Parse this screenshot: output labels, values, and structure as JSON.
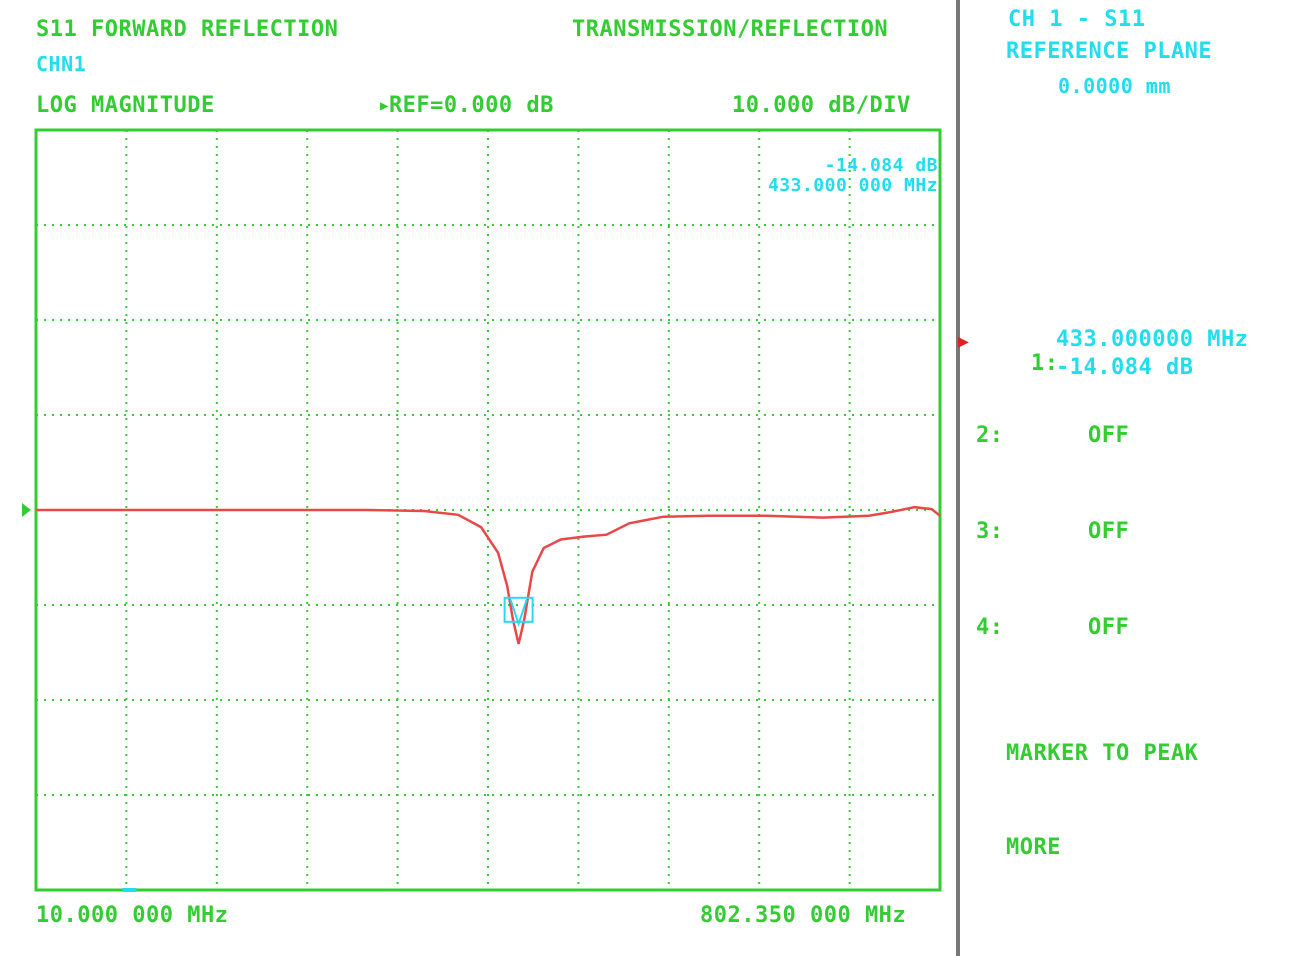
{
  "header": {
    "measurement": "S11 FORWARD REFLECTION",
    "mode": "TRANSMISSION/REFLECTION",
    "channel": "CHN1",
    "format": "LOG MAGNITUDE",
    "reference": "REF=0.000 dB",
    "scale": "10.000 dB/DIV"
  },
  "marker_readout": {
    "value": "-14.084 dB",
    "frequency": "433.000 000 MHz"
  },
  "footer": {
    "start": "10.000 000 MHz",
    "stop": "802.350 000 MHz"
  },
  "sidebar": {
    "channel_param": "CH 1 - S11",
    "ref_plane_label": "REFERENCE PLANE",
    "ref_plane_value": "0.0000 mm",
    "markers": [
      {
        "label": "1:",
        "value": "433.000000 MHz",
        "value2": "-14.084 dB",
        "active": true
      },
      {
        "label": "2:",
        "value": "OFF",
        "value2": "",
        "active": false
      },
      {
        "label": "3:",
        "value": "OFF",
        "value2": "",
        "active": false
      },
      {
        "label": "4:",
        "value": "OFF",
        "value2": "",
        "active": false
      }
    ],
    "softkeys": [
      "MARKER TO PEAK",
      "MORE"
    ]
  },
  "colors": {
    "grid": "#33cc33",
    "trace": "#e84848",
    "annotation": "#22ddee",
    "marker_arrow": "#dd2222",
    "divider": "#777777"
  },
  "chart_data": {
    "type": "line",
    "xlabel": "",
    "ylabel": "",
    "x_range_mhz": [
      10,
      802.35
    ],
    "y_divisions_db": 10,
    "ylim": [
      -40,
      40
    ],
    "reference_db": 0,
    "grid": true,
    "series": [
      {
        "x": [
          10,
          100,
          200,
          300,
          350,
          380,
          400,
          415,
          423,
          428,
          433,
          438,
          445,
          455,
          470,
          490,
          510,
          530,
          560,
          600,
          650,
          700,
          740,
          760,
          780,
          795,
          802.35
        ],
        "y": [
          0,
          0,
          0,
          0,
          -0.1,
          -0.5,
          -1.8,
          -4.5,
          -8,
          -11.5,
          -14.1,
          -11.5,
          -6.5,
          -4,
          -3.1,
          -2.8,
          -2.6,
          -1.4,
          -0.7,
          -0.6,
          -0.6,
          -0.8,
          -0.6,
          -0.2,
          0.3,
          0.1,
          -0.6
        ]
      }
    ],
    "marker": {
      "x": 433,
      "y": -14.084
    }
  }
}
